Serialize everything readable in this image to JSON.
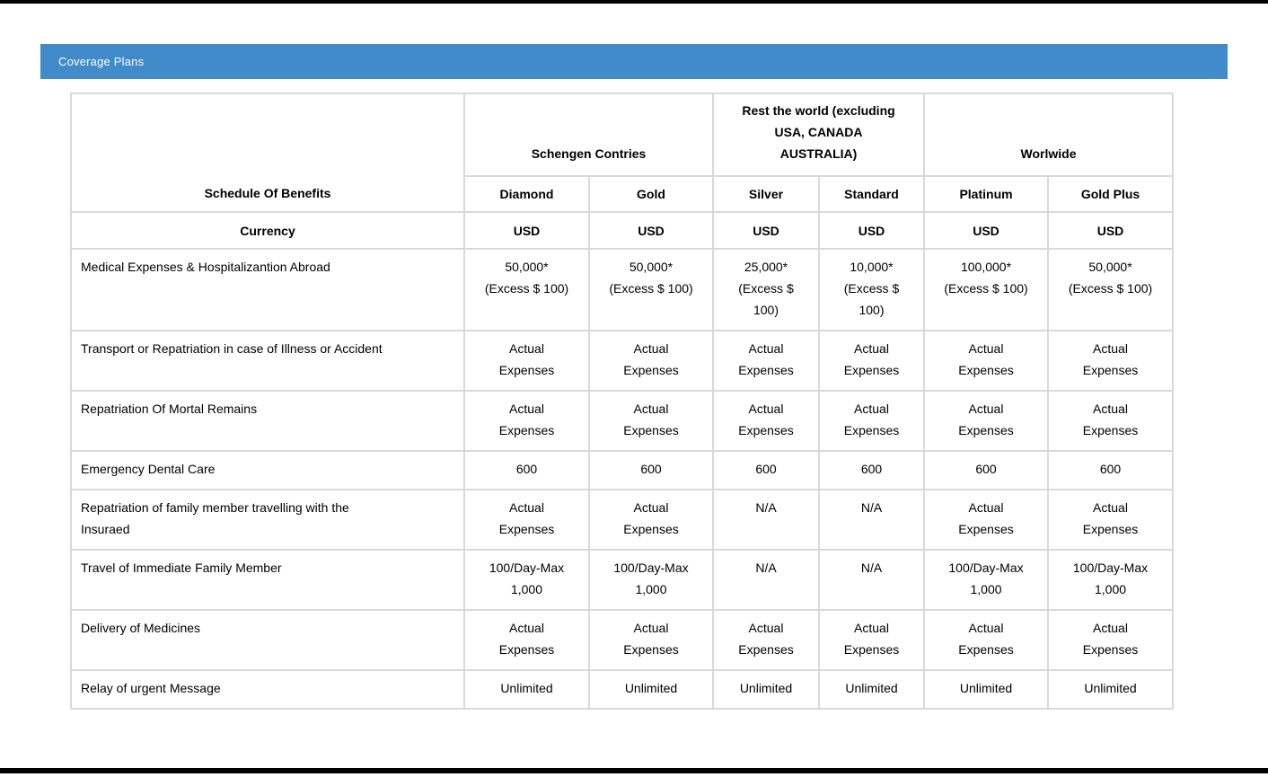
{
  "panel": {
    "title": "Coverage Plans",
    "accent_color": "#428bca"
  },
  "table": {
    "corner_header": "Schedule Of Benefits",
    "groups": [
      {
        "label": "Schengen Contries"
      },
      {
        "label": "Rest the world (excluding\nUSA, CANADA\nAUSTRALIA)"
      },
      {
        "label": "Worlwide"
      }
    ],
    "plans": [
      "Diamond",
      "Gold",
      "Silver",
      "Standard",
      "Platinum",
      "Gold Plus"
    ],
    "currency_label": "Currency",
    "currencies": [
      "USD",
      "USD",
      "USD",
      "USD",
      "USD",
      "USD"
    ],
    "rows": [
      {
        "benefit": "Medical Expenses & Hospitalizantion Abroad",
        "values": [
          "50,000*\n(Excess $ 100)",
          "50,000*\n(Excess $ 100)",
          "25,000*\n(Excess $\n100)",
          "10,000*\n(Excess $\n100)",
          "100,000*\n(Excess $ 100)",
          "50,000*\n(Excess $ 100)"
        ]
      },
      {
        "benefit": "Transport or Repatriation in case of Illness or Accident",
        "values": [
          "Actual\nExpenses",
          "Actual\nExpenses",
          "Actual\nExpenses",
          "Actual\nExpenses",
          "Actual\nExpenses",
          "Actual\nExpenses"
        ]
      },
      {
        "benefit": "Repatriation Of Mortal Remains",
        "values": [
          "Actual\nExpenses",
          "Actual\nExpenses",
          "Actual\nExpenses",
          "Actual\nExpenses",
          "Actual\nExpenses",
          "Actual\nExpenses"
        ]
      },
      {
        "benefit": "Emergency Dental Care",
        "values": [
          "600",
          "600",
          "600",
          "600",
          "600",
          "600"
        ]
      },
      {
        "benefit": "Repatriation of family member travelling with the\nInsuraed",
        "values": [
          "Actual\nExpenses",
          "Actual\nExpenses",
          "N/A",
          "N/A",
          "Actual\nExpenses",
          "Actual\nExpenses"
        ]
      },
      {
        "benefit": "Travel of Immediate Family Member",
        "values": [
          "100/Day-Max\n1,000",
          "100/Day-Max\n1,000",
          "N/A",
          "N/A",
          "100/Day-Max\n1,000",
          "100/Day-Max\n1,000"
        ]
      },
      {
        "benefit": "Delivery of Medicines",
        "values": [
          "Actual\nExpenses",
          "Actual\nExpenses",
          "Actual\nExpenses",
          "Actual\nExpenses",
          "Actual\nExpenses",
          "Actual\nExpenses"
        ]
      },
      {
        "benefit": "Relay of urgent Message",
        "values": [
          "Unlimited",
          "Unlimited",
          "Unlimited",
          "Unlimited",
          "Unlimited",
          "Unlimited"
        ]
      }
    ]
  }
}
